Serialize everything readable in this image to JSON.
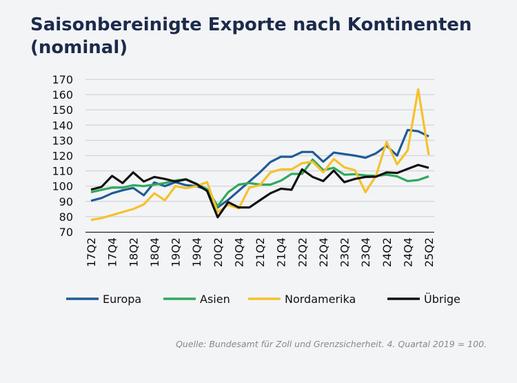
{
  "chart_data": {
    "type": "line",
    "title": "Saisonbereinigte Exporte nach Kontinenten (nominal)",
    "xlabel": "",
    "ylabel": "",
    "ylim": [
      70,
      170
    ],
    "yticks": [
      70,
      80,
      90,
      100,
      110,
      120,
      130,
      140,
      150,
      160,
      170
    ],
    "grid": true,
    "legend": "bottom",
    "x": [
      "17Q2",
      "17Q3",
      "17Q4",
      "18Q1",
      "18Q2",
      "18Q3",
      "18Q4",
      "19Q1",
      "19Q2",
      "19Q3",
      "19Q4",
      "20Q1",
      "20Q2",
      "20Q3",
      "20Q4",
      "21Q1",
      "21Q2",
      "21Q3",
      "21Q4",
      "22Q1",
      "22Q2",
      "22Q3",
      "22Q4",
      "23Q1",
      "23Q2",
      "23Q3",
      "23Q4",
      "24Q1",
      "24Q2",
      "24Q3",
      "24Q4",
      "25Q1",
      "25Q2"
    ],
    "xtick_labels": [
      "17Q2",
      "17Q4",
      "18Q2",
      "18Q4",
      "19Q2",
      "19Q4",
      "20Q2",
      "20Q4",
      "21Q2",
      "21Q4",
      "22Q2",
      "22Q4",
      "23Q2",
      "23Q4",
      "24Q2",
      "24Q4",
      "25Q2"
    ],
    "series": [
      {
        "name": "Europa",
        "color": "#1f5b97",
        "values": [
          90.4,
          92.2,
          95.3,
          97.3,
          98.8,
          94,
          102.4,
          100,
          102.6,
          100.6,
          100,
          97.6,
          86,
          91,
          97,
          103,
          109,
          115.8,
          119.3,
          119.2,
          122.4,
          122.4,
          116,
          122,
          121,
          120,
          118.6,
          121.5,
          126.5,
          120,
          136.8,
          136,
          132.6
        ]
      },
      {
        "name": "Asien",
        "color": "#2fa95b",
        "values": [
          96,
          97.6,
          99,
          99,
          100.6,
          100,
          101,
          102,
          103.7,
          104.5,
          101.4,
          98,
          87,
          96,
          101,
          102,
          101,
          101,
          103.6,
          108,
          108,
          117.4,
          110.5,
          112,
          107.5,
          107.8,
          107,
          106.7,
          107.5,
          106.4,
          103.3,
          104,
          106.4
        ]
      },
      {
        "name": "Nordamerika",
        "color": "#f6c12a",
        "values": [
          77.8,
          79,
          81,
          83,
          85,
          88,
          95.3,
          90.7,
          100,
          98.6,
          100,
          102.6,
          83,
          87.7,
          85.4,
          99,
          100.6,
          109,
          111,
          111,
          115,
          116,
          109,
          117.8,
          112.3,
          110.5,
          96,
          106.7,
          129,
          114.3,
          123.4,
          163.5,
          120.4
        ]
      },
      {
        "name": "Übrige",
        "color": "#111111",
        "values": [
          97.7,
          99.5,
          106.7,
          102,
          109,
          103,
          106,
          104.7,
          103,
          104.4,
          101.4,
          96.8,
          79.6,
          89.5,
          86,
          86,
          90.7,
          95.3,
          98.3,
          97.6,
          111,
          106,
          103.3,
          110.2,
          102.6,
          104.7,
          106,
          106.2,
          109,
          108.6,
          111.3,
          113.9,
          112
        ]
      }
    ]
  },
  "source": "Quelle: Bundesamt für Zoll und Grenzsicherheit. 4. Quartal 2019 = 100."
}
